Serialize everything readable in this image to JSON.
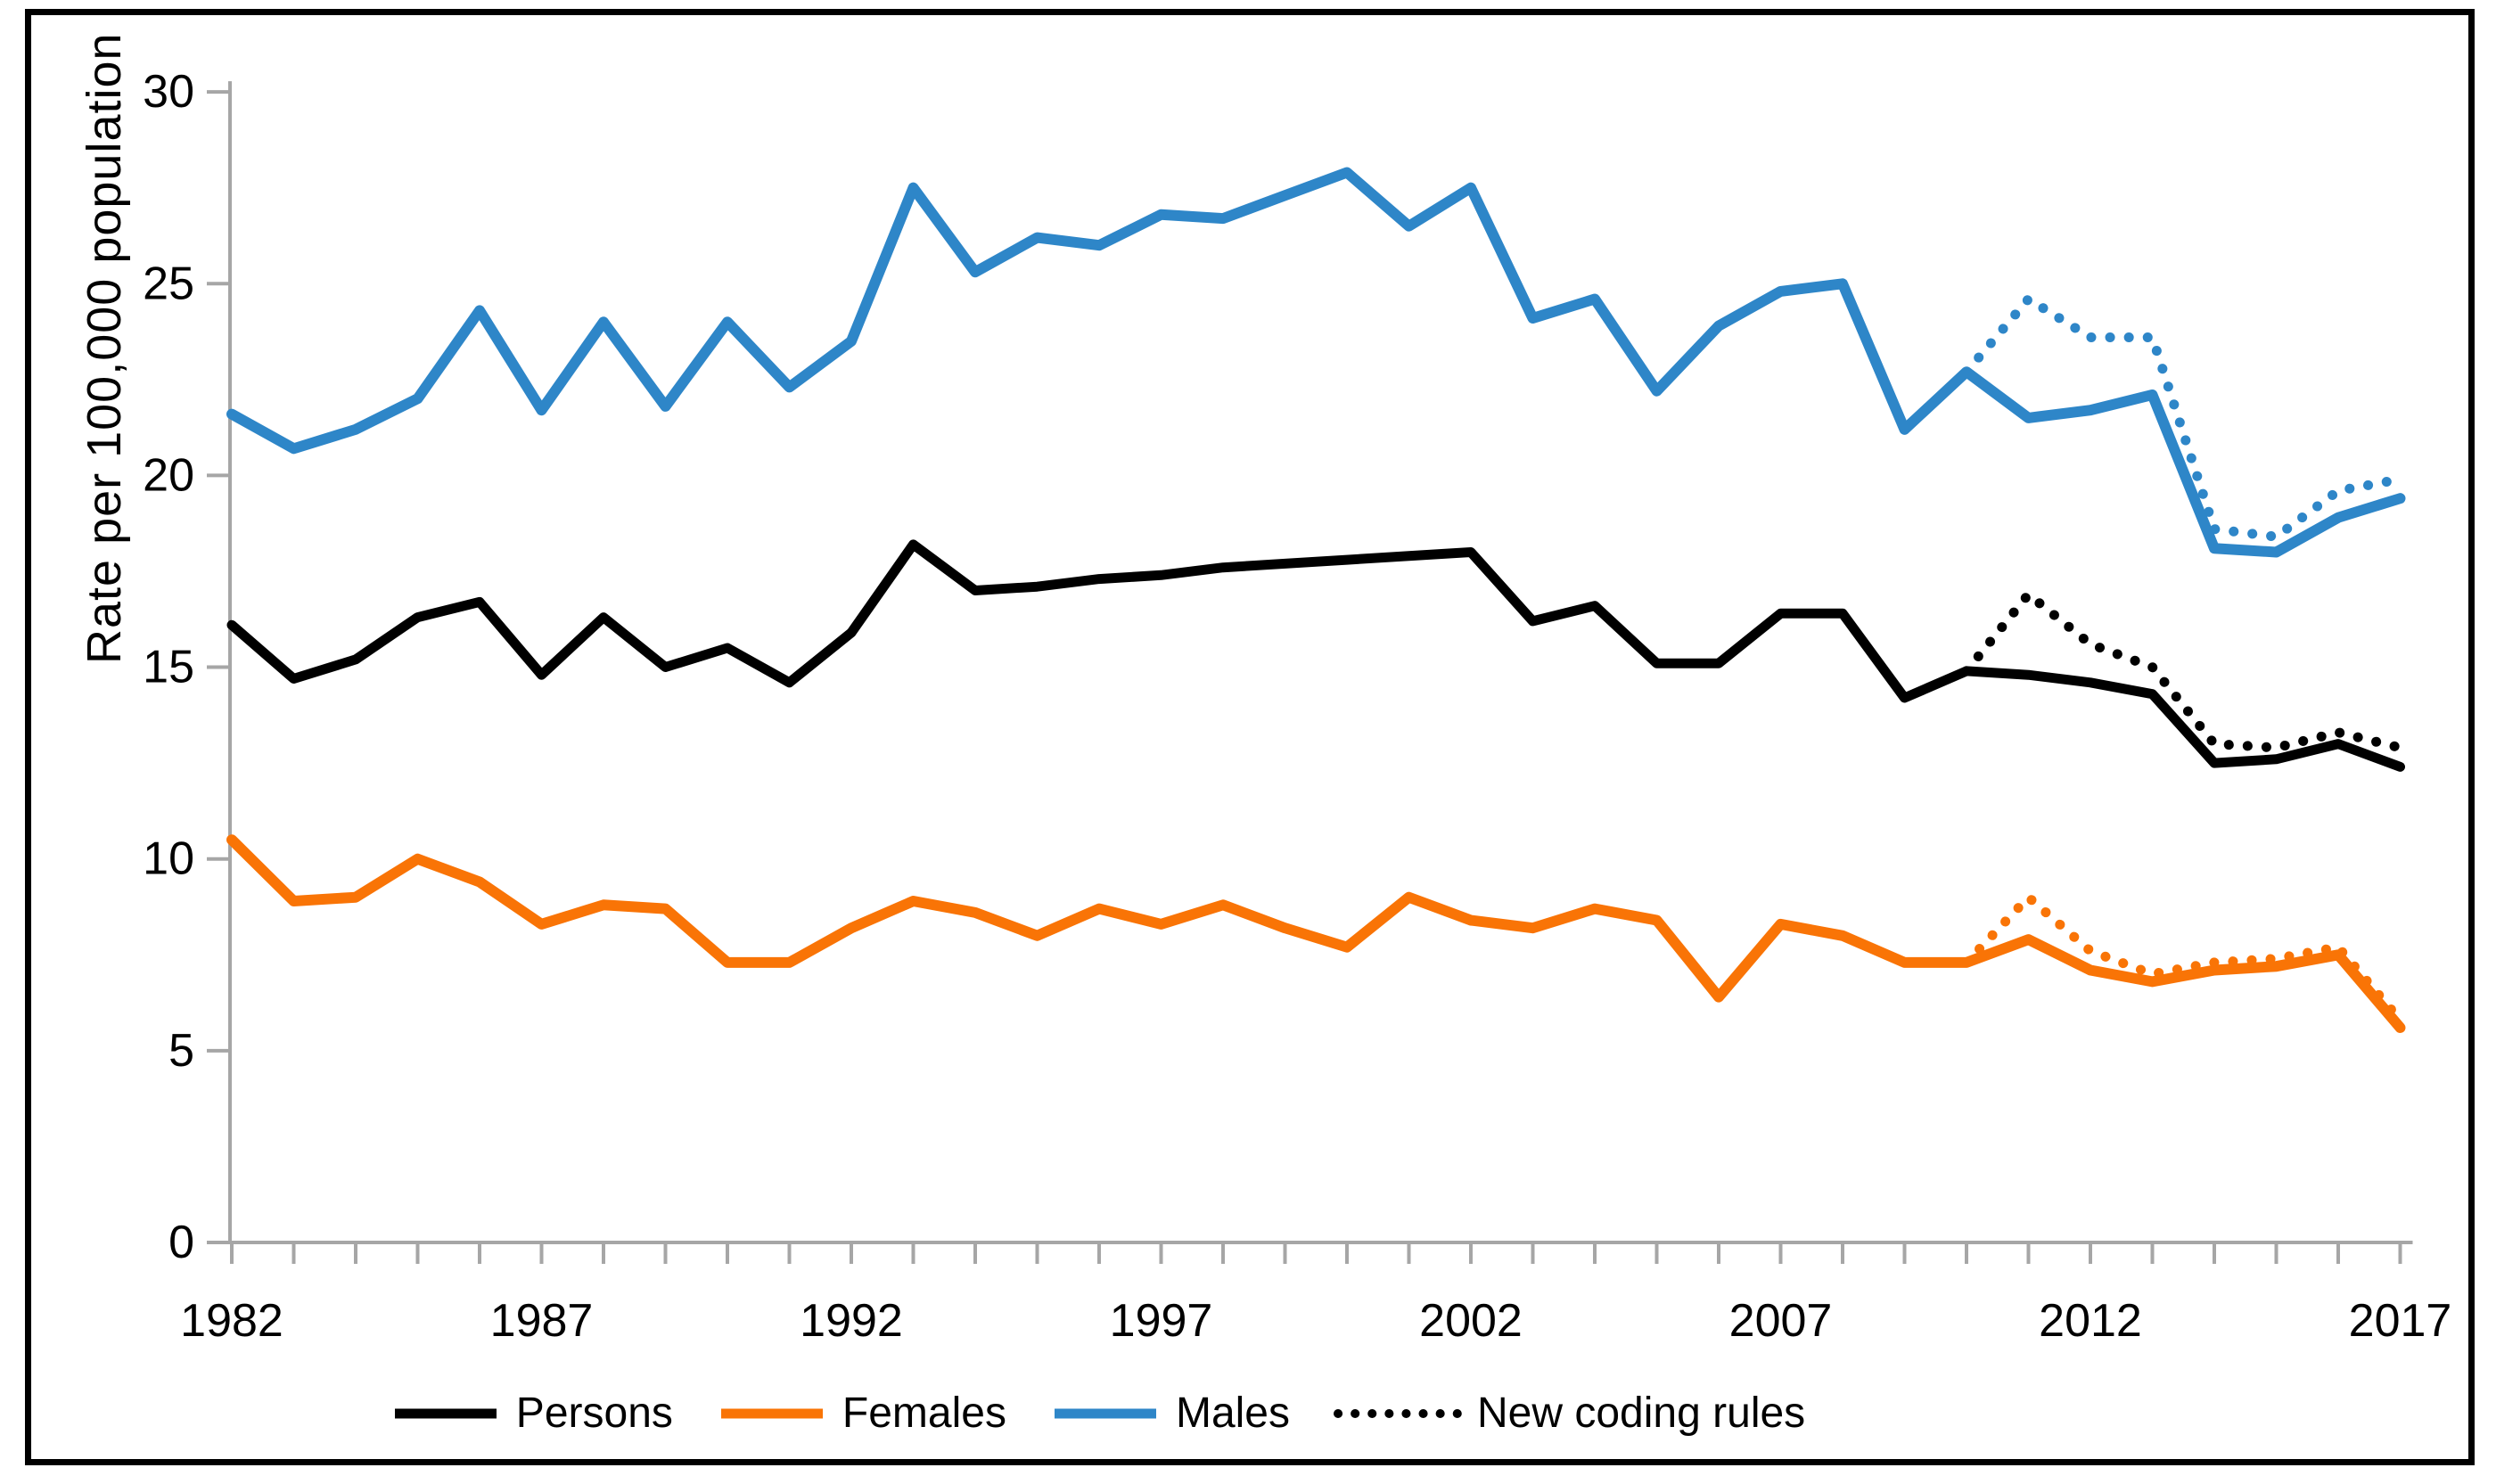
{
  "window": {
    "background": "#ffffff",
    "frame_border_color": "#000000"
  },
  "chart_data": {
    "type": "line",
    "title": "",
    "xlabel": "",
    "ylabel": "Rate per 100,000 population",
    "x_range": [
      1982,
      2017
    ],
    "ylim": [
      0,
      30
    ],
    "y_ticks": [
      0,
      5,
      10,
      15,
      20,
      25,
      30
    ],
    "x_tick_years_labeled": [
      1982,
      1987,
      1992,
      1997,
      2002,
      2007,
      2012,
      2017
    ],
    "x_minor_ticks_every_year": true,
    "grid": false,
    "legend_position": "bottom-center",
    "axis_color": "#a6a6a6",
    "text_color": "#000000",
    "years": [
      1982,
      1983,
      1984,
      1985,
      1986,
      1987,
      1988,
      1989,
      1990,
      1991,
      1992,
      1993,
      1994,
      1995,
      1996,
      1997,
      1998,
      1999,
      2000,
      2001,
      2002,
      2003,
      2004,
      2005,
      2006,
      2007,
      2008,
      2009,
      2010,
      2011,
      2012,
      2013,
      2014,
      2015,
      2016,
      2017
    ],
    "series": [
      {
        "name": "Persons",
        "color": "#000000",
        "style": "solid",
        "width": 11,
        "start_year": 1982,
        "values": [
          16.1,
          14.7,
          15.2,
          16.3,
          16.7,
          14.8,
          16.3,
          15.0,
          15.5,
          14.6,
          15.9,
          18.2,
          17.0,
          17.1,
          17.3,
          17.4,
          17.6,
          17.7,
          17.8,
          17.9,
          18.0,
          16.2,
          16.6,
          15.1,
          15.1,
          16.4,
          16.4,
          14.2,
          14.9,
          14.8,
          14.6,
          14.3,
          12.5,
          12.6,
          13.0,
          12.4
        ]
      },
      {
        "name": "Females",
        "color": "#f97406",
        "style": "solid",
        "width": 12,
        "start_year": 1982,
        "values": [
          10.5,
          8.9,
          9.0,
          10.0,
          9.4,
          8.3,
          8.8,
          8.7,
          7.3,
          7.3,
          8.2,
          8.9,
          8.6,
          8.0,
          8.7,
          8.3,
          8.8,
          8.2,
          7.7,
          9.0,
          8.4,
          8.2,
          8.7,
          8.4,
          6.4,
          8.3,
          8.0,
          7.3,
          7.3,
          7.9,
          7.1,
          6.8,
          7.1,
          7.2,
          7.5,
          5.6
        ]
      },
      {
        "name": "Males",
        "color": "#2e86c8",
        "style": "solid",
        "width": 12,
        "start_year": 1982,
        "values": [
          21.6,
          20.7,
          21.2,
          22.0,
          24.3,
          21.7,
          24.0,
          21.8,
          24.0,
          22.3,
          23.5,
          27.5,
          25.3,
          26.2,
          26.0,
          26.8,
          26.7,
          27.3,
          27.9,
          26.5,
          27.5,
          24.1,
          24.6,
          22.2,
          23.9,
          24.8,
          25.0,
          21.2,
          22.7,
          21.5,
          21.7,
          22.1,
          18.1,
          18.0,
          18.9,
          19.4
        ]
      },
      {
        "name": "New coding rules (Persons)",
        "color": "#000000",
        "style": "dotted",
        "width": 11,
        "start_year": 2010,
        "values": [
          14.9,
          16.9,
          15.6,
          15.0,
          13.0,
          12.9,
          13.3,
          12.9
        ]
      },
      {
        "name": "New coding rules (Females)",
        "color": "#f97406",
        "style": "dotted",
        "width": 11,
        "start_year": 2010,
        "values": [
          7.3,
          9.0,
          7.6,
          7.0,
          7.3,
          7.4,
          7.7,
          5.8
        ]
      },
      {
        "name": "New coding rules (Males)",
        "color": "#2e86c8",
        "style": "dotted",
        "width": 11,
        "start_year": 2010,
        "values": [
          22.7,
          24.6,
          23.6,
          23.6,
          18.6,
          18.4,
          19.6,
          19.9
        ]
      }
    ],
    "legend": [
      {
        "label": "Persons",
        "color": "#000000",
        "style": "solid"
      },
      {
        "label": "Females",
        "color": "#f97406",
        "style": "solid"
      },
      {
        "label": "Males",
        "color": "#2e86c8",
        "style": "solid"
      },
      {
        "label": "New coding rules",
        "color": "#000000",
        "style": "dotted"
      }
    ]
  },
  "layout_note_visible_text_only": true
}
